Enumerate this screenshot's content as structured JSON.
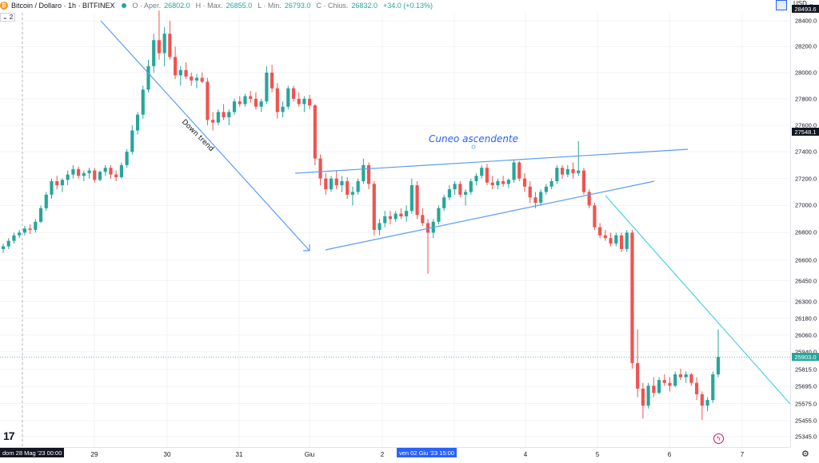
{
  "legend": {
    "symbol": "Bitcoin / Dollaro · 1h · BITFINEX",
    "open_label": "O · Aper.",
    "open": "26802.0",
    "high_label": "H · Max.",
    "high": "26855.0",
    "low_label": "L · Min.",
    "low": "26793.0",
    "close_label": "C · Chius.",
    "close": "26832.0",
    "change": "+34.0 (+0.13%)",
    "indicator_count": "2"
  },
  "toolbar": {
    "currency": "USD",
    "settings_icon": "gear-icon",
    "chevron_icon": "chevron-down-icon"
  },
  "colors": {
    "up": "#26a69a",
    "down": "#ef5350",
    "trend": "#5b9cf6",
    "trend_cyan": "#4dd0e1",
    "label_blue": "#2962ff",
    "tag_dark": "#131722",
    "last_price": "#26a69a"
  },
  "price_axis": {
    "ticks": [
      "28400.0",
      "28200.0",
      "28000.0",
      "27800.0",
      "27600.0",
      "27400.0",
      "27200.0",
      "27000.0",
      "26800.0",
      "26600.0",
      "26450.0",
      "26300.0",
      "26180.0",
      "26060.0",
      "25940.0",
      "25815.0",
      "25695.0",
      "25575.0",
      "25455.0",
      "25345.0"
    ],
    "tags": [
      {
        "text": "28493.6",
        "kind": "dark"
      },
      {
        "text": "27548.1",
        "kind": "dark"
      },
      {
        "text": "25903.0",
        "kind": "last"
      }
    ]
  },
  "time_axis": {
    "ticks": [
      "29",
      "30",
      "31",
      "Giu",
      "2",
      "4",
      "5",
      "6",
      "7"
    ],
    "start_label": "dom 28 Mag '23   00:00",
    "cursor_label": "ven 02 Giu '23   15:00"
  },
  "annotations": {
    "pattern_title": "Cuneo ascendente",
    "trend_label": "Down trend"
  },
  "chart_data": {
    "type": "candlestick",
    "symbol": "BTC/USD",
    "interval": "1h",
    "exchange": "BITFINEX",
    "ylim": [
      25300,
      28500
    ],
    "grid": true,
    "y_scale": "log",
    "candles": [
      [
        26680,
        26720,
        26650,
        26700
      ],
      [
        26700,
        26760,
        26680,
        26740
      ],
      [
        26740,
        26800,
        26720,
        26780
      ],
      [
        26780,
        26820,
        26760,
        26800
      ],
      [
        26800,
        26850,
        26780,
        26830
      ],
      [
        26830,
        26860,
        26790,
        26820
      ],
      [
        26820,
        26900,
        26800,
        26880
      ],
      [
        26880,
        27000,
        26870,
        26980
      ],
      [
        26980,
        27100,
        26960,
        27080
      ],
      [
        27080,
        27200,
        27050,
        27180
      ],
      [
        27180,
        27220,
        27120,
        27150
      ],
      [
        27150,
        27200,
        27100,
        27190
      ],
      [
        27190,
        27260,
        27150,
        27230
      ],
      [
        27230,
        27300,
        27200,
        27270
      ],
      [
        27270,
        27290,
        27200,
        27220
      ],
      [
        27220,
        27260,
        27180,
        27240
      ],
      [
        27240,
        27280,
        27200,
        27260
      ],
      [
        27260,
        27280,
        27170,
        27190
      ],
      [
        27190,
        27260,
        27180,
        27250
      ],
      [
        27250,
        27300,
        27220,
        27280
      ],
      [
        27280,
        27300,
        27200,
        27230
      ],
      [
        27230,
        27260,
        27180,
        27210
      ],
      [
        27210,
        27320,
        27200,
        27300
      ],
      [
        27300,
        27420,
        27280,
        27400
      ],
      [
        27400,
        27600,
        27380,
        27560
      ],
      [
        27560,
        27700,
        27530,
        27680
      ],
      [
        27680,
        27900,
        27650,
        27870
      ],
      [
        27870,
        28100,
        27850,
        28050
      ],
      [
        28050,
        28300,
        28000,
        28250
      ],
      [
        28250,
        28480,
        28100,
        28150
      ],
      [
        28150,
        28350,
        28050,
        28300
      ],
      [
        28300,
        28400,
        28100,
        28120
      ],
      [
        28120,
        28200,
        27950,
        27980
      ],
      [
        27980,
        28050,
        27900,
        28020
      ],
      [
        28020,
        28080,
        27950,
        27970
      ],
      [
        27970,
        28000,
        27900,
        27940
      ],
      [
        27940,
        27990,
        27880,
        27960
      ],
      [
        27960,
        28000,
        27920,
        27930
      ],
      [
        27930,
        27960,
        27600,
        27640
      ],
      [
        27640,
        27700,
        27560,
        27620
      ],
      [
        27620,
        27720,
        27600,
        27700
      ],
      [
        27700,
        27760,
        27640,
        27660
      ],
      [
        27660,
        27720,
        27600,
        27700
      ],
      [
        27700,
        27800,
        27680,
        27780
      ],
      [
        27780,
        27820,
        27740,
        27760
      ],
      [
        27760,
        27840,
        27740,
        27820
      ],
      [
        27820,
        27860,
        27770,
        27800
      ],
      [
        27800,
        27850,
        27720,
        27740
      ],
      [
        27740,
        27800,
        27700,
        27780
      ],
      [
        27780,
        28050,
        27760,
        28000
      ],
      [
        28000,
        28060,
        27850,
        27880
      ],
      [
        27880,
        27920,
        27650,
        27700
      ],
      [
        27700,
        27780,
        27660,
        27740
      ],
      [
        27740,
        27900,
        27720,
        27880
      ],
      [
        27880,
        27900,
        27780,
        27800
      ],
      [
        27800,
        27850,
        27740,
        27760
      ],
      [
        27760,
        27820,
        27700,
        27800
      ],
      [
        27800,
        27830,
        27720,
        27750
      ],
      [
        27750,
        27760,
        27300,
        27350
      ],
      [
        27350,
        27380,
        27150,
        27200
      ],
      [
        27200,
        27240,
        27080,
        27120
      ],
      [
        27120,
        27220,
        27100,
        27200
      ],
      [
        27200,
        27260,
        27120,
        27150
      ],
      [
        27150,
        27220,
        27100,
        27180
      ],
      [
        27180,
        27210,
        27050,
        27080
      ],
      [
        27080,
        27140,
        27000,
        27100
      ],
      [
        27100,
        27200,
        27080,
        27180
      ],
      [
        27180,
        27350,
        27160,
        27300
      ],
      [
        27300,
        27320,
        27120,
        27160
      ],
      [
        27160,
        27180,
        26780,
        26820
      ],
      [
        26820,
        26900,
        26780,
        26870
      ],
      [
        26870,
        26960,
        26840,
        26920
      ],
      [
        26920,
        26960,
        26860,
        26900
      ],
      [
        26900,
        26960,
        26880,
        26940
      ],
      [
        26940,
        26980,
        26900,
        26920
      ],
      [
        26920,
        27000,
        26880,
        26960
      ],
      [
        26960,
        27200,
        26940,
        27150
      ],
      [
        27150,
        27180,
        26900,
        26930
      ],
      [
        26930,
        26980,
        26850,
        26870
      ],
      [
        26870,
        26900,
        26500,
        26800
      ],
      [
        26800,
        26900,
        26760,
        26880
      ],
      [
        26880,
        27000,
        26860,
        26980
      ],
      [
        26980,
        27080,
        26960,
        27060
      ],
      [
        27060,
        27150,
        27040,
        27120
      ],
      [
        27120,
        27180,
        27080,
        27160
      ],
      [
        27160,
        27180,
        27060,
        27080
      ],
      [
        27080,
        27120,
        27000,
        27100
      ],
      [
        27100,
        27200,
        27080,
        27180
      ],
      [
        27180,
        27240,
        27150,
        27220
      ],
      [
        27220,
        27300,
        27200,
        27280
      ],
      [
        27280,
        27310,
        27150,
        27170
      ],
      [
        27170,
        27220,
        27120,
        27150
      ],
      [
        27150,
        27200,
        27120,
        27180
      ],
      [
        27180,
        27220,
        27140,
        27160
      ],
      [
        27160,
        27200,
        27130,
        27190
      ],
      [
        27190,
        27340,
        27170,
        27320
      ],
      [
        27320,
        27330,
        27180,
        27200
      ],
      [
        27200,
        27240,
        27100,
        27140
      ],
      [
        27140,
        27180,
        27020,
        27060
      ],
      [
        27060,
        27100,
        26980,
        27020
      ],
      [
        27020,
        27120,
        27000,
        27100
      ],
      [
        27100,
        27160,
        27080,
        27140
      ],
      [
        27140,
        27200,
        27120,
        27180
      ],
      [
        27180,
        27300,
        27160,
        27280
      ],
      [
        27280,
        27300,
        27200,
        27230
      ],
      [
        27230,
        27300,
        27210,
        27270
      ],
      [
        27270,
        27320,
        27200,
        27240
      ],
      [
        27240,
        27480,
        27220,
        27260
      ],
      [
        27260,
        27280,
        27080,
        27100
      ],
      [
        27100,
        27120,
        26980,
        27000
      ],
      [
        27000,
        27020,
        26820,
        26840
      ],
      [
        26840,
        26870,
        26760,
        26780
      ],
      [
        26780,
        26820,
        26740,
        26760
      ],
      [
        26760,
        26800,
        26700,
        26720
      ],
      [
        26720,
        26800,
        26700,
        26780
      ],
      [
        26780,
        26800,
        26660,
        26680
      ],
      [
        26680,
        26820,
        26660,
        26800
      ],
      [
        26800,
        26820,
        25820,
        25860
      ],
      [
        25860,
        26100,
        25620,
        25680
      ],
      [
        25680,
        25720,
        25470,
        25560
      ],
      [
        25560,
        25720,
        25540,
        25700
      ],
      [
        25700,
        25760,
        25620,
        25650
      ],
      [
        25650,
        25760,
        25640,
        25740
      ],
      [
        25740,
        25780,
        25700,
        25720
      ],
      [
        25720,
        25760,
        25660,
        25700
      ],
      [
        25700,
        25800,
        25690,
        25780
      ],
      [
        25780,
        25820,
        25740,
        25760
      ],
      [
        25760,
        25800,
        25720,
        25780
      ],
      [
        25780,
        25790,
        25700,
        25720
      ],
      [
        25720,
        25760,
        25600,
        25640
      ],
      [
        25640,
        25660,
        25460,
        25560
      ],
      [
        25560,
        25620,
        25520,
        25600
      ],
      [
        25600,
        25800,
        25580,
        25780
      ],
      [
        25780,
        26100,
        25760,
        25903
      ]
    ]
  }
}
